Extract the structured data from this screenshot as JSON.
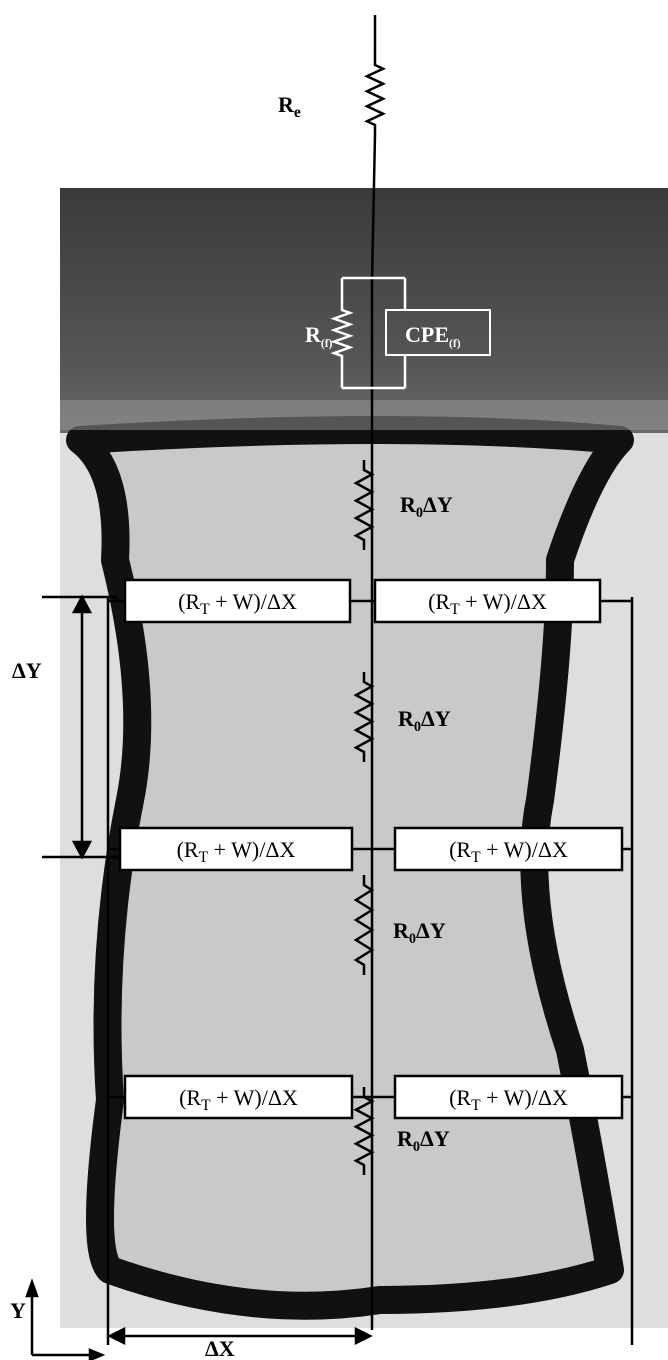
{
  "circuit": {
    "electrolyte": [
      "R",
      "e"
    ],
    "film_resistance": [
      "R",
      "(f)"
    ],
    "film_cpe": [
      "CPE",
      "(f)"
    ],
    "axial_resistances": [
      [
        "R",
        "0",
        "ΔY"
      ],
      [
        "R",
        "0",
        "ΔY"
      ],
      [
        "R",
        "0",
        "ΔY"
      ],
      [
        "R",
        "0",
        "ΔY"
      ]
    ],
    "transfer_impedances": [
      [
        "(R",
        "T",
        " + W)/ΔX"
      ],
      [
        "(R",
        "T",
        " + W)/ΔX"
      ],
      [
        "(R",
        "T",
        " + W)/ΔX"
      ],
      [
        "(R",
        "T",
        " + W)/ΔX"
      ],
      [
        "(R",
        "T",
        " + W)/ΔX"
      ],
      [
        "(R",
        "T",
        " + W)/ΔX"
      ]
    ],
    "dimensions": {
      "dy": [
        "ΔY"
      ],
      "dx": [
        "ΔX"
      ],
      "y_axis": [
        "Y"
      ]
    }
  }
}
